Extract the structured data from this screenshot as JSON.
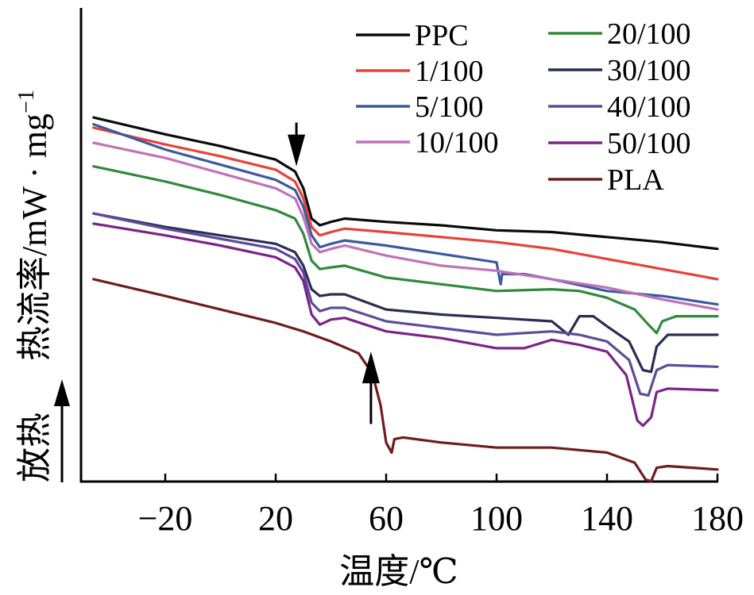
{
  "chart_data": {
    "type": "line",
    "xlabel": "温度/℃",
    "ylabel": "热流率/mW·mg⁻¹",
    "ylabel_parts": {
      "main": "热流率/mW · mg",
      "sup": "−1"
    },
    "exo_label": "放热",
    "xlim": [
      -46,
      182
    ],
    "x_ticks": [
      -20,
      20,
      60,
      100,
      140,
      180
    ],
    "x_tick_labels": [
      "−20",
      "20",
      "60",
      "100",
      "140",
      "180"
    ],
    "y_ticks_shown": false,
    "grid": false,
    "legend_position": "top-right",
    "colors": {
      "PPC": "#0a0a0a",
      "1/100": "#e8413a",
      "5/100": "#3a5a9e",
      "10/100": "#bf72b8",
      "20/100": "#2f8a3c",
      "30/100": "#2c2c54",
      "40/100": "#5d4b9c",
      "50/100": "#7b2387",
      "PLA": "#6e1c1c"
    },
    "series": [
      {
        "name": "PPC",
        "points": [
          [
            -46,
            13.9
          ],
          [
            -20,
            12.9
          ],
          [
            0,
            12.2
          ],
          [
            20,
            11.4
          ],
          [
            27,
            10.7
          ],
          [
            30,
            9.7
          ],
          [
            33,
            7.9
          ],
          [
            36,
            7.5
          ],
          [
            40,
            7.7
          ],
          [
            45,
            7.9
          ],
          [
            60,
            7.7
          ],
          [
            80,
            7.5
          ],
          [
            100,
            7.2
          ],
          [
            120,
            7.1
          ],
          [
            140,
            6.8
          ],
          [
            160,
            6.5
          ],
          [
            180,
            6.1
          ]
        ]
      },
      {
        "name": "1/100",
        "points": [
          [
            -46,
            13.3
          ],
          [
            -20,
            12.3
          ],
          [
            0,
            11.6
          ],
          [
            20,
            10.8
          ],
          [
            27,
            10.1
          ],
          [
            30,
            9.1
          ],
          [
            33,
            7.4
          ],
          [
            36,
            6.9
          ],
          [
            40,
            7.1
          ],
          [
            45,
            7.3
          ],
          [
            60,
            7.1
          ],
          [
            80,
            6.8
          ],
          [
            100,
            6.5
          ],
          [
            120,
            6.1
          ],
          [
            140,
            5.5
          ],
          [
            160,
            4.9
          ],
          [
            180,
            4.3
          ]
        ]
      },
      {
        "name": "5/100",
        "points": [
          [
            -46,
            13.5
          ],
          [
            -20,
            12.0
          ],
          [
            0,
            11.1
          ],
          [
            20,
            10.2
          ],
          [
            27,
            9.6
          ],
          [
            30,
            8.6
          ],
          [
            33,
            6.9
          ],
          [
            36,
            6.2
          ],
          [
            40,
            6.4
          ],
          [
            45,
            6.6
          ],
          [
            60,
            6.3
          ],
          [
            80,
            5.8
          ],
          [
            100,
            5.3
          ],
          [
            101,
            4.4
          ],
          [
            101.5,
            4.0
          ],
          [
            102,
            4.6
          ],
          [
            110,
            4.6
          ],
          [
            120,
            4.3
          ],
          [
            140,
            3.6
          ],
          [
            160,
            3.3
          ],
          [
            180,
            2.8
          ]
        ]
      },
      {
        "name": "10/100",
        "points": [
          [
            -46,
            12.4
          ],
          [
            -20,
            11.5
          ],
          [
            0,
            10.6
          ],
          [
            20,
            9.7
          ],
          [
            27,
            9.1
          ],
          [
            30,
            8.0
          ],
          [
            33,
            6.4
          ],
          [
            36,
            5.9
          ],
          [
            40,
            6.1
          ],
          [
            45,
            6.3
          ],
          [
            60,
            5.7
          ],
          [
            80,
            5.1
          ],
          [
            100,
            4.8
          ],
          [
            120,
            4.3
          ],
          [
            140,
            3.8
          ],
          [
            160,
            3.1
          ],
          [
            180,
            2.5
          ]
        ]
      },
      {
        "name": "20/100",
        "points": [
          [
            -46,
            11.0
          ],
          [
            -20,
            10.1
          ],
          [
            0,
            9.3
          ],
          [
            20,
            8.4
          ],
          [
            27,
            7.9
          ],
          [
            30,
            7.0
          ],
          [
            33,
            5.4
          ],
          [
            36,
            4.9
          ],
          [
            40,
            5.0
          ],
          [
            45,
            5.1
          ],
          [
            60,
            4.4
          ],
          [
            80,
            4.0
          ],
          [
            100,
            3.6
          ],
          [
            120,
            3.7
          ],
          [
            130,
            3.6
          ],
          [
            140,
            3.2
          ],
          [
            150,
            2.5
          ],
          [
            155,
            1.6
          ],
          [
            158,
            1.1
          ],
          [
            160,
            1.8
          ],
          [
            165,
            2.1
          ],
          [
            180,
            2.1
          ]
        ]
      },
      {
        "name": "30/100",
        "points": [
          [
            -46,
            8.2
          ],
          [
            -20,
            7.4
          ],
          [
            0,
            6.9
          ],
          [
            20,
            6.4
          ],
          [
            27,
            5.9
          ],
          [
            30,
            5.1
          ],
          [
            33,
            3.7
          ],
          [
            36,
            3.3
          ],
          [
            40,
            3.4
          ],
          [
            45,
            3.4
          ],
          [
            60,
            2.5
          ],
          [
            80,
            2.2
          ],
          [
            100,
            2.0
          ],
          [
            120,
            1.8
          ],
          [
            126,
            1.0
          ],
          [
            130,
            2.1
          ],
          [
            135,
            2.1
          ],
          [
            140,
            1.5
          ],
          [
            148,
            0.6
          ],
          [
            153,
            -1.1
          ],
          [
            156,
            -1.2
          ],
          [
            158,
            0.3
          ],
          [
            162,
            1.0
          ],
          [
            180,
            1.0
          ]
        ]
      },
      {
        "name": "40/100",
        "points": [
          [
            -46,
            8.2
          ],
          [
            -20,
            7.3
          ],
          [
            0,
            6.7
          ],
          [
            20,
            6.1
          ],
          [
            27,
            5.5
          ],
          [
            30,
            4.7
          ],
          [
            33,
            2.9
          ],
          [
            36,
            2.4
          ],
          [
            40,
            2.6
          ],
          [
            45,
            2.6
          ],
          [
            60,
            1.8
          ],
          [
            80,
            1.4
          ],
          [
            100,
            1.0
          ],
          [
            120,
            1.2
          ],
          [
            130,
            1.0
          ],
          [
            140,
            0.6
          ],
          [
            148,
            -0.5
          ],
          [
            152,
            -2.5
          ],
          [
            155,
            -2.6
          ],
          [
            158,
            -1.1
          ],
          [
            162,
            -0.8
          ],
          [
            180,
            -0.9
          ]
        ]
      },
      {
        "name": "50/100",
        "points": [
          [
            -46,
            7.6
          ],
          [
            -20,
            6.9
          ],
          [
            0,
            6.3
          ],
          [
            20,
            5.6
          ],
          [
            27,
            5.0
          ],
          [
            30,
            4.2
          ],
          [
            33,
            2.2
          ],
          [
            36,
            1.6
          ],
          [
            40,
            1.9
          ],
          [
            45,
            2.0
          ],
          [
            60,
            1.2
          ],
          [
            80,
            0.8
          ],
          [
            100,
            0.2
          ],
          [
            110,
            0.2
          ],
          [
            120,
            0.7
          ],
          [
            130,
            0.4
          ],
          [
            140,
            0.0
          ],
          [
            147,
            -1.4
          ],
          [
            151,
            -4.1
          ],
          [
            153,
            -4.4
          ],
          [
            156,
            -3.9
          ],
          [
            158,
            -2.4
          ],
          [
            162,
            -2.2
          ],
          [
            180,
            -2.3
          ]
        ]
      },
      {
        "name": "PLA",
        "points": [
          [
            -46,
            4.3
          ],
          [
            -20,
            3.3
          ],
          [
            0,
            2.5
          ],
          [
            20,
            1.7
          ],
          [
            30,
            1.2
          ],
          [
            40,
            0.6
          ],
          [
            50,
            -0.1
          ],
          [
            55,
            -1.3
          ],
          [
            58,
            -3.2
          ],
          [
            60,
            -5.4
          ],
          [
            62,
            -6.0
          ],
          [
            63,
            -5.2
          ],
          [
            66,
            -5.1
          ],
          [
            80,
            -5.4
          ],
          [
            100,
            -5.7
          ],
          [
            120,
            -5.7
          ],
          [
            140,
            -6.0
          ],
          [
            150,
            -6.6
          ],
          [
            154,
            -7.6
          ],
          [
            156,
            -7.7
          ],
          [
            158,
            -6.9
          ],
          [
            162,
            -6.8
          ],
          [
            180,
            -7.0
          ]
        ]
      }
    ],
    "annotations": [
      {
        "type": "arrow-down",
        "x": 27.5,
        "y_from": 13.6,
        "y_to": 11.0
      },
      {
        "type": "arrow-up",
        "x": 54.5,
        "y_from": -4.3,
        "y_to": 0.0
      }
    ]
  }
}
